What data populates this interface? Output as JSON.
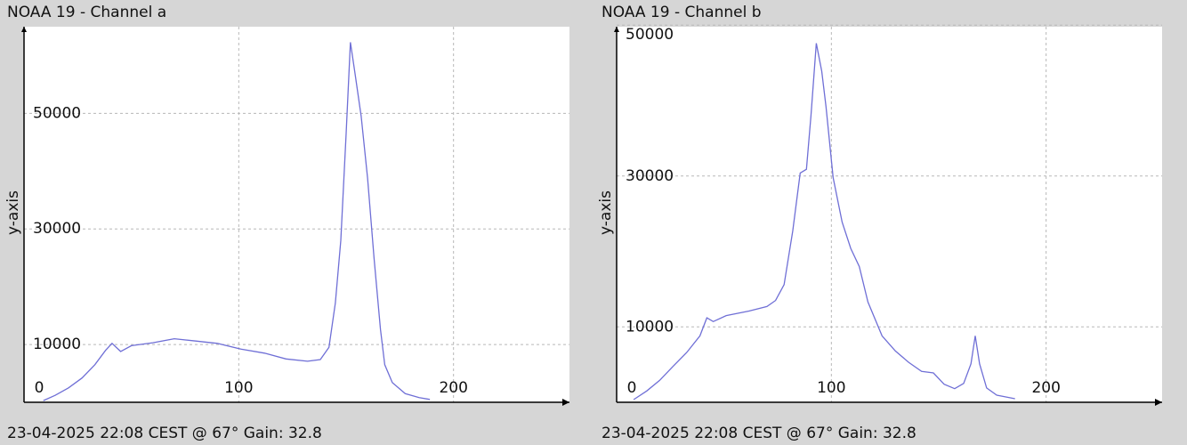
{
  "chart_data": [
    {
      "type": "line",
      "title": "NOAA 19 - Channel a",
      "ylabel": "y-axis",
      "footer": "23-04-2025 22:08 CEST @ 67° Gain: 32.8",
      "color": "#6f6fd6",
      "xlim": [
        0,
        254
      ],
      "ylim": [
        0,
        65000
      ],
      "xticks": [
        0,
        100,
        200
      ],
      "yticks": [
        10000,
        30000,
        50000
      ],
      "grid": true,
      "x": [
        9,
        14.5,
        20.7,
        27,
        33,
        38,
        41,
        45,
        50,
        60,
        70,
        80,
        90,
        101,
        112,
        122,
        132,
        138,
        142,
        145,
        147.5,
        150,
        152,
        154,
        157,
        160,
        163,
        166,
        168,
        171.5,
        177.5,
        184,
        189
      ],
      "values": [
        300,
        1200,
        2500,
        4200,
        6500,
        9000,
        10200,
        8800,
        9800,
        10300,
        11000,
        10600,
        10200,
        9200,
        8500,
        7500,
        7100,
        7400,
        9500,
        17200,
        28000,
        46500,
        62300,
        57200,
        49500,
        38800,
        24900,
        12600,
        6500,
        3400,
        1500,
        800,
        500
      ]
    },
    {
      "type": "line",
      "title": "NOAA 19 - Channel b",
      "ylabel": "y-axis",
      "footer": "23-04-2025 22:08 CEST @ 67° Gain: 32.8",
      "color": "#6f6fd6",
      "xlim": [
        0,
        254
      ],
      "ylim": [
        0,
        49800
      ],
      "xticks": [
        0,
        100,
        200
      ],
      "yticks": [
        10000,
        30000,
        50000
      ],
      "grid": true,
      "x": [
        7.9,
        14,
        20,
        26.4,
        32.6,
        38.8,
        42,
        45,
        51,
        61.6,
        70,
        74,
        78,
        82,
        85.5,
        88.4,
        90.5,
        93,
        95.5,
        97.5,
        100.8,
        105,
        109,
        113,
        117,
        123.6,
        129.8,
        136,
        142,
        147.5,
        152.5,
        157.4,
        161.6,
        165,
        167,
        169,
        172.3,
        177,
        185.5
      ],
      "values": [
        350,
        1500,
        2900,
        4800,
        6600,
        8800,
        11200,
        10700,
        11500,
        12100,
        12700,
        13500,
        15600,
        22700,
        30400,
        30900,
        38000,
        47600,
        43900,
        39200,
        29800,
        23900,
        20400,
        18000,
        13300,
        8800,
        6800,
        5300,
        4100,
        3900,
        2400,
        1800,
        2500,
        5100,
        8800,
        5100,
        1900,
        940,
        470
      ]
    }
  ]
}
